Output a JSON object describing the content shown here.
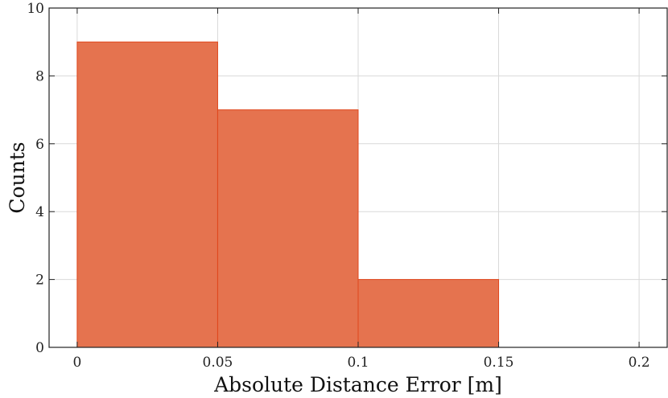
{
  "chart_data": {
    "type": "bar",
    "subtype": "histogram",
    "title": "",
    "xlabel": "Absolute Distance Error [m]",
    "ylabel": "Counts",
    "bins": [
      {
        "start": 0,
        "end": 0.05,
        "count": 9
      },
      {
        "start": 0.05,
        "end": 0.1,
        "count": 7
      },
      {
        "start": 0.1,
        "end": 0.15,
        "count": 2
      }
    ],
    "xlim": [
      -0.01,
      0.21
    ],
    "ylim": [
      0,
      10
    ],
    "xticks": [
      0,
      0.05,
      0.1,
      0.15,
      0.2
    ],
    "xtick_labels": [
      "0",
      "0.05",
      "0.1",
      "0.15",
      "0.2"
    ],
    "yticks": [
      0,
      2,
      4,
      6,
      8,
      10
    ],
    "ytick_labels": [
      "0",
      "2",
      "4",
      "6",
      "8",
      "10"
    ],
    "grid": true,
    "bar_color": "#e5734f",
    "bar_edge_color": "#e0471c"
  }
}
